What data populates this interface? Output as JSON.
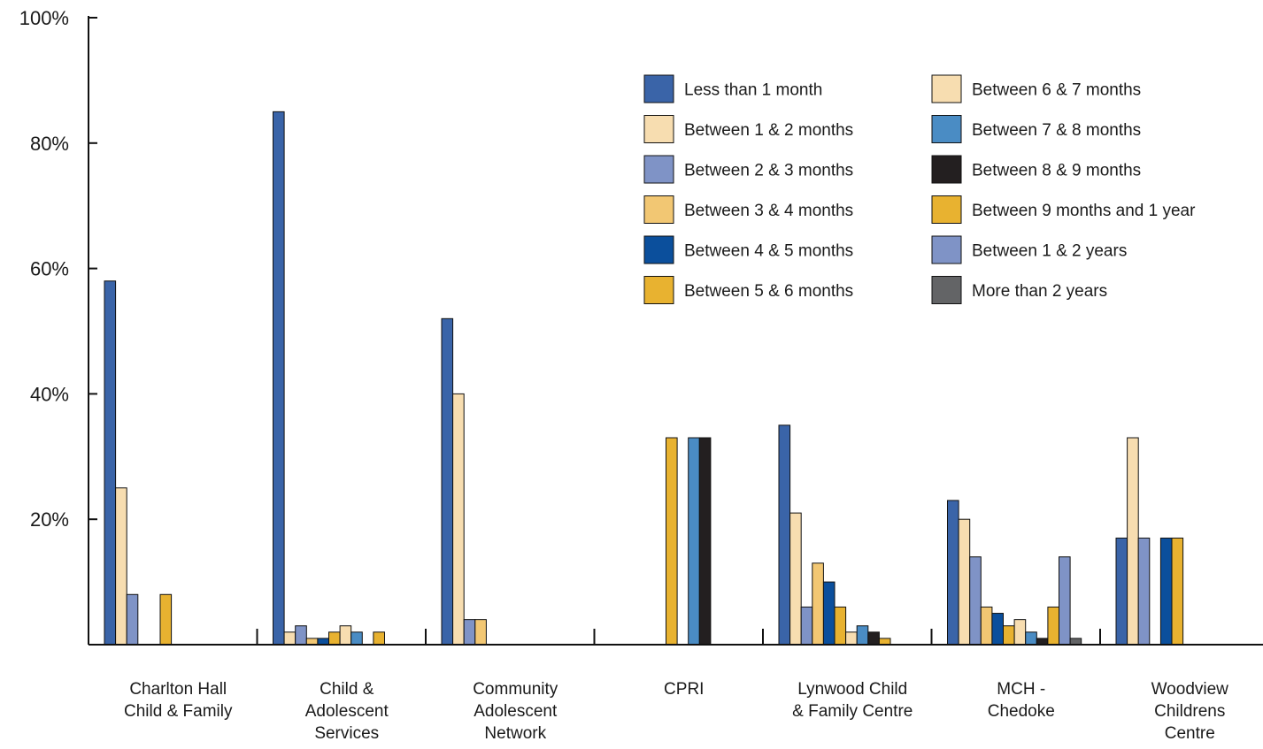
{
  "chart_data": {
    "type": "bar",
    "title": "",
    "xlabel": "",
    "ylabel": "",
    "ylim": [
      0,
      100
    ],
    "yticks": [
      {
        "value": 20,
        "label": "20%"
      },
      {
        "value": 40,
        "label": "40%"
      },
      {
        "value": 60,
        "label": "60%"
      },
      {
        "value": 80,
        "label": "80%"
      },
      {
        "value": 100,
        "label": "100%"
      }
    ],
    "categories": [
      [
        "Charlton Hall",
        "Child & Family"
      ],
      [
        "Child &",
        "Adolescent",
        "Services"
      ],
      [
        "Community",
        "Adolescent",
        "Network"
      ],
      [
        "CPRI"
      ],
      [
        "Lynwood Child",
        "& Family Centre"
      ],
      [
        "MCH -",
        "Chedoke"
      ],
      [
        "Woodview",
        "Childrens",
        "Centre"
      ]
    ],
    "legend_position": "top-right",
    "grid": false,
    "series": [
      {
        "name": "Less than 1 month",
        "color": "#3a64a8",
        "values": [
          58,
          85,
          52,
          0,
          35,
          23,
          17
        ]
      },
      {
        "name": "Between 1 & 2 months",
        "color": "#f7ddb0",
        "values": [
          25,
          2,
          40,
          0,
          21,
          20,
          33
        ]
      },
      {
        "name": "Between 2 & 3 months",
        "color": "#7f93c6",
        "values": [
          8,
          3,
          4,
          0,
          6,
          14,
          17
        ]
      },
      {
        "name": "Between 3 & 4 months",
        "color": "#f2c773",
        "values": [
          0,
          1,
          4,
          0,
          13,
          6,
          0
        ]
      },
      {
        "name": "Between 4 & 5 months",
        "color": "#0b4f9c",
        "values": [
          0,
          1,
          0,
          0,
          10,
          5,
          17
        ]
      },
      {
        "name": "Between 5 & 6 months",
        "color": "#e8b230",
        "values": [
          8,
          2,
          0,
          33,
          6,
          3,
          17
        ]
      },
      {
        "name": "Between 6 & 7 months",
        "color": "#f7ddb0",
        "values": [
          0,
          3,
          0,
          0,
          2,
          4,
          0
        ]
      },
      {
        "name": "Between 7 & 8 months",
        "color": "#4a8cc4",
        "values": [
          0,
          2,
          0,
          33,
          3,
          2,
          0
        ]
      },
      {
        "name": "Between 8 & 9 months",
        "color": "#231f20",
        "values": [
          0,
          0,
          0,
          33,
          2,
          1,
          0
        ]
      },
      {
        "name": "Between 9 months and 1 year",
        "color": "#e8b230",
        "values": [
          0,
          2,
          0,
          0,
          1,
          6,
          0
        ]
      },
      {
        "name": "Between 1 & 2 years",
        "color": "#7f93c6",
        "values": [
          0,
          0,
          0,
          0,
          0,
          14,
          0
        ]
      },
      {
        "name": "More than 2 years",
        "color": "#636466",
        "values": [
          0,
          0,
          0,
          0,
          0,
          1,
          0
        ]
      }
    ]
  }
}
